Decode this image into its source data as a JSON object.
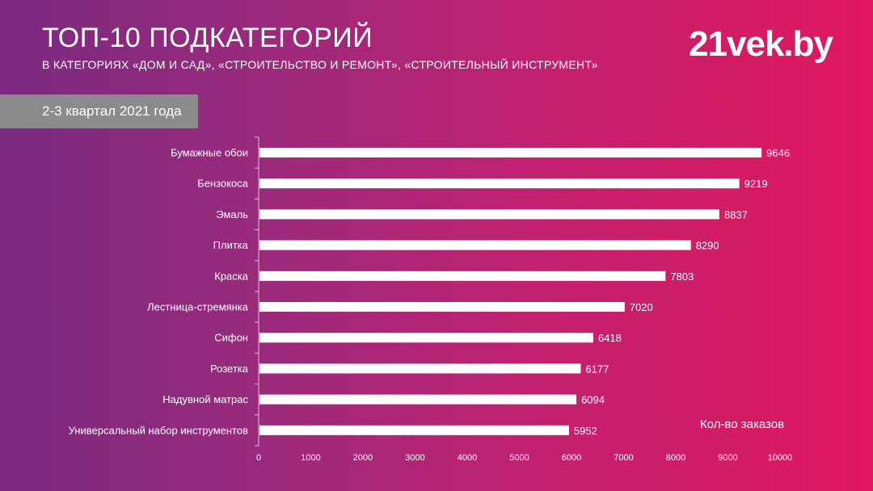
{
  "header": {
    "title": "ТОП-10 ПОДКАТЕГОРИЙ",
    "subtitle": "В КАТЕГОРИЯХ «ДОМ И САД», «СТРОИТЕЛЬСТВО И РЕМОНТ», «СТРОИТЕЛЬНЫЙ ИНСТРУМЕНТ»",
    "logo": "21vek.by",
    "period": "2-3 квартал 2021 года"
  },
  "colors": {
    "gradient_start": "#7a2a80",
    "gradient_end": "#e0185f",
    "bar": "#ffffff",
    "period_box": "#8c8a8c"
  },
  "chart_data": {
    "type": "bar",
    "orientation": "horizontal",
    "categories": [
      "Бумажные обои",
      "Бензокоса",
      "Эмаль",
      "Плитка",
      "Краска",
      "Лестница-стремянка",
      "Сифон",
      "Розетка",
      "Надувной матрас",
      "Универсальный набор инструментов"
    ],
    "values": [
      9646,
      9219,
      8837,
      8290,
      7803,
      7020,
      6418,
      6177,
      6094,
      5952
    ],
    "xlabel": "Кол-во заказов",
    "ylabel": "",
    "xlim": [
      0,
      10000
    ],
    "xticks": [
      0,
      1000,
      2000,
      3000,
      4000,
      5000,
      6000,
      7000,
      8000,
      9000,
      10000
    ],
    "data_labels": true,
    "grid": false
  }
}
